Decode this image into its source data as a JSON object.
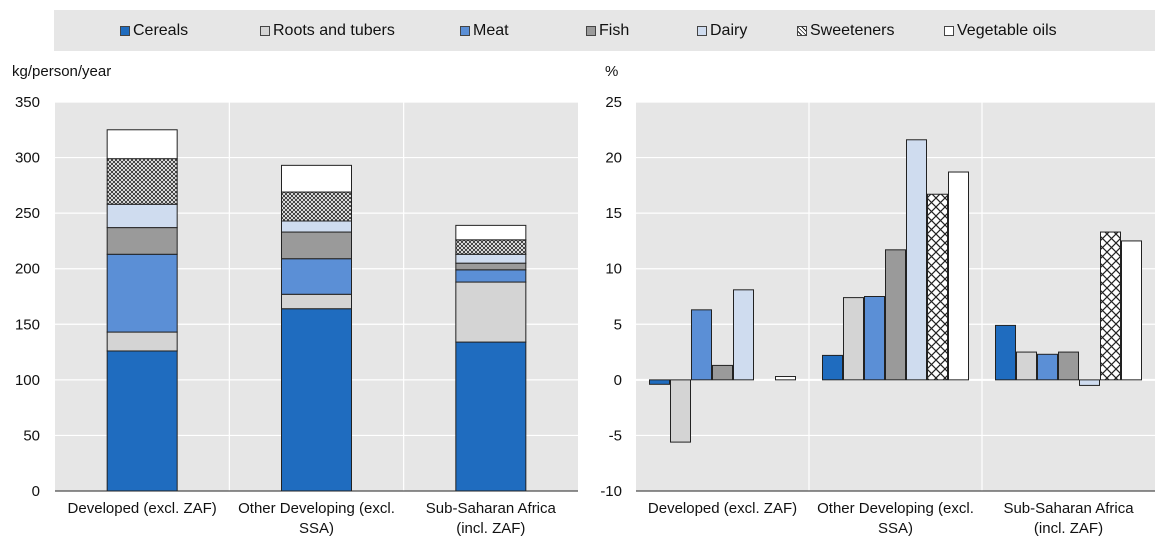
{
  "legend": [
    {
      "name": "Cereals",
      "color": "#1f6cbf",
      "pattern": "solid"
    },
    {
      "name": "Roots and tubers",
      "color": "#d4d4d4",
      "pattern": "solid"
    },
    {
      "name": "Meat",
      "color": "#5b8fd6",
      "pattern": "solid"
    },
    {
      "name": "Fish",
      "color": "#9a9a9a",
      "pattern": "solid"
    },
    {
      "name": "Dairy",
      "color": "#cfdcef",
      "pattern": "solid"
    },
    {
      "name": "Sweeteners",
      "color": "#ffffff",
      "pattern": "crosshatch"
    },
    {
      "name": "Vegetable oils",
      "color": "#ffffff",
      "pattern": "solid"
    }
  ],
  "chart_data": [
    {
      "type": "bar",
      "stacked": true,
      "ylabel": "kg/person/year",
      "ylim": [
        0,
        350
      ],
      "yticks": [
        0,
        50,
        100,
        150,
        200,
        250,
        300,
        350
      ],
      "categories": [
        "Developed (excl. ZAF)",
        "Other Developing (excl. SSA)",
        "Sub-Saharan Africa (incl. ZAF)"
      ],
      "category_lines": [
        [
          "Developed (excl. ZAF)"
        ],
        [
          "Other Developing (excl.",
          "SSA)"
        ],
        [
          "Sub-Saharan Africa",
          "(incl. ZAF)"
        ]
      ],
      "series": [
        {
          "name": "Cereals",
          "values": [
            126,
            164,
            134
          ]
        },
        {
          "name": "Roots and tubers",
          "values": [
            17,
            13,
            54
          ]
        },
        {
          "name": "Meat",
          "values": [
            70,
            32,
            11
          ]
        },
        {
          "name": "Fish",
          "values": [
            24,
            24,
            6
          ]
        },
        {
          "name": "Dairy",
          "values": [
            21,
            10,
            8
          ]
        },
        {
          "name": "Sweeteners",
          "values": [
            41,
            26,
            13
          ]
        },
        {
          "name": "Vegetable oils",
          "values": [
            26,
            24,
            13
          ]
        }
      ]
    },
    {
      "type": "bar",
      "stacked": false,
      "ylabel": "%",
      "ylim": [
        -10,
        25
      ],
      "yticks": [
        -10,
        -5,
        0,
        5,
        10,
        15,
        20,
        25
      ],
      "categories": [
        "Developed (excl. ZAF)",
        "Other Developing (excl. SSA)",
        "Sub-Saharan Africa (incl. ZAF)"
      ],
      "category_lines": [
        [
          "Developed (excl. ZAF)"
        ],
        [
          "Other Developing (excl.",
          "SSA)"
        ],
        [
          "Sub-Saharan Africa",
          "(incl. ZAF)"
        ]
      ],
      "series": [
        {
          "name": "Cereals",
          "values": [
            -0.4,
            2.2,
            4.9
          ]
        },
        {
          "name": "Roots and tubers",
          "values": [
            -5.6,
            7.4,
            2.5
          ]
        },
        {
          "name": "Meat",
          "values": [
            6.3,
            7.5,
            2.3
          ]
        },
        {
          "name": "Fish",
          "values": [
            1.3,
            11.7,
            2.5
          ]
        },
        {
          "name": "Dairy",
          "values": [
            8.1,
            21.6,
            -0.5
          ]
        },
        {
          "name": "Sweeteners",
          "values": [
            0,
            16.7,
            13.3
          ]
        },
        {
          "name": "Vegetable oils",
          "values": [
            0.3,
            18.7,
            12.5
          ]
        }
      ]
    }
  ]
}
